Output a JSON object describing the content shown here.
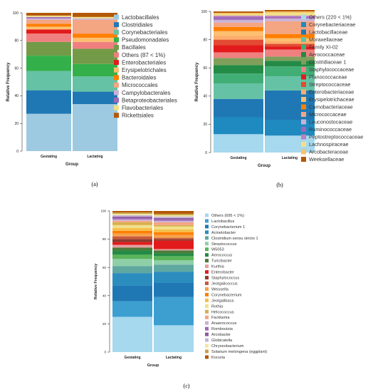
{
  "chart_data": [
    {
      "type": "bar",
      "stacked": true,
      "panel_label": "(a)",
      "xlabel": "Group",
      "ylabel": "Relative Frequency",
      "ylim": [
        0,
        100
      ],
      "yticks": [
        0,
        20,
        40,
        60,
        80,
        100
      ],
      "categories": [
        "Gestating",
        "Lactating"
      ],
      "series": [
        {
          "name": "Lactobacillales",
          "color": "#9ecae1",
          "values": [
            27.0,
            34.0
          ]
        },
        {
          "name": "Clostridiales",
          "color": "#1f78b4",
          "values": [
            17.0,
            9.0
          ]
        },
        {
          "name": "Corynebacteriales",
          "color": "#66c2a4",
          "values": [
            14.0,
            11.0
          ]
        },
        {
          "name": "Pseudomonadales",
          "color": "#33b04a",
          "values": [
            11.0,
            9.0
          ]
        },
        {
          "name": "Bacillales",
          "color": "#739b47",
          "values": [
            10.0,
            11.0
          ]
        },
        {
          "name": "Others (87 < 1%)",
          "color": "#f08080",
          "values": [
            6.0,
            5.0
          ]
        },
        {
          "name": "Enterobacteriales",
          "color": "#e31a1c",
          "values": [
            3.0,
            0.0
          ]
        },
        {
          "name": "Erysipelotrichales",
          "color": "#fdbf6f",
          "values": [
            2.0,
            3.0
          ]
        },
        {
          "name": "Bacteroidales",
          "color": "#ff7f00",
          "values": [
            2.0,
            3.0
          ]
        },
        {
          "name": "Micrococcales",
          "color": "#f4a582",
          "values": [
            3.0,
            10.0
          ]
        },
        {
          "name": "Campylobacterales",
          "color": "#cab2d6",
          "values": [
            1.0,
            1.0
          ]
        },
        {
          "name": "Betaproteobacteriales",
          "color": "#9e6ab8",
          "values": [
            1.0,
            0.0
          ]
        },
        {
          "name": "Flavobacteriales",
          "color": "#f1e08a",
          "values": [
            1.0,
            1.0
          ]
        },
        {
          "name": "Rickettsiales",
          "color": "#b35806",
          "values": [
            2.0,
            3.0
          ]
        }
      ]
    },
    {
      "type": "bar",
      "stacked": true,
      "panel_label": "(b)",
      "xlabel": "Group",
      "ylabel": "Relative Frequency",
      "ylim": [
        0,
        100
      ],
      "yticks": [
        0,
        20,
        40,
        60,
        80,
        100
      ],
      "categories": [
        "Gestating",
        "Lactating"
      ],
      "series": [
        {
          "name": "Others (220 < 1%)",
          "color": "#a6d8ee",
          "values": [
            13.0,
            12.0
          ]
        },
        {
          "name": "Corynebacteriaceae",
          "color": "#1f8ac0",
          "values": [
            12.0,
            11.0
          ]
        },
        {
          "name": "Lactobacillaceae",
          "color": "#1f78b4",
          "values": [
            13.0,
            21.0
          ]
        },
        {
          "name": "Moraxellaceae",
          "color": "#66c2a4",
          "values": [
            11.0,
            10.0
          ]
        },
        {
          "name": "Family XI-02",
          "color": "#41ae76",
          "values": [
            7.0,
            7.0
          ]
        },
        {
          "name": "Aerococcaceae",
          "color": "#238b45",
          "values": [
            6.0,
            4.0
          ]
        },
        {
          "name": "Clostridiaceae 1",
          "color": "#7f9f5a",
          "values": [
            5.0,
            3.0
          ]
        },
        {
          "name": "Staphylococcaceae",
          "color": "#f08080",
          "values": [
            4.0,
            5.0
          ]
        },
        {
          "name": "Planococcaceae",
          "color": "#e31a1c",
          "values": [
            5.0,
            2.0
          ]
        },
        {
          "name": "Streptococcaceae",
          "color": "#e34a33",
          "values": [
            4.0,
            2.0
          ]
        },
        {
          "name": "Enterobacteriaceae",
          "color": "#fdae6b",
          "values": [
            3.0,
            2.0
          ]
        },
        {
          "name": "Erysipelotrichaceae",
          "color": "#fdbf6f",
          "values": [
            3.0,
            2.0
          ]
        },
        {
          "name": "Carnobacteriaceae",
          "color": "#ff7f00",
          "values": [
            3.0,
            3.0
          ]
        },
        {
          "name": "Micrococcaceae",
          "color": "#f4a582",
          "values": [
            3.0,
            9.0
          ]
        },
        {
          "name": "Leuconostocaceae",
          "color": "#cab2d6",
          "values": [
            2.0,
            2.0
          ]
        },
        {
          "name": "Ruminococcaceae",
          "color": "#9e6ab8",
          "values": [
            2.0,
            1.0
          ]
        },
        {
          "name": "Peptostreptococcaceae",
          "color": "#bc80bd",
          "values": [
            1.0,
            1.0
          ]
        },
        {
          "name": "Lachnospiraceae",
          "color": "#f1e08a",
          "values": [
            1.0,
            2.0
          ]
        },
        {
          "name": "Arcobacteraceae",
          "color": "#f6c26b",
          "values": [
            1.0,
            1.0
          ]
        },
        {
          "name": "Weeksellaceae",
          "color": "#b35806",
          "values": [
            1.0,
            1.0
          ]
        }
      ]
    },
    {
      "type": "bar",
      "stacked": true,
      "panel_label": "(c)",
      "xlabel": "Group",
      "ylabel": "Relative Frequency",
      "ylim": [
        0,
        100
      ],
      "yticks": [
        0,
        20,
        40,
        60,
        80,
        100
      ],
      "categories": [
        "Gestating",
        "Lactating"
      ],
      "series": [
        {
          "name": "Others (695 < 1%)",
          "color": "#a6d8ee",
          "values": [
            25.0,
            19.0
          ]
        },
        {
          "name": "Lactobacillus",
          "color": "#3c9fd0",
          "values": [
            11.0,
            20.0
          ]
        },
        {
          "name": "Corynebacterium 1",
          "color": "#1f78b4",
          "values": [
            11.0,
            10.0
          ]
        },
        {
          "name": "Acinetobacter",
          "color": "#2b8cbe",
          "values": [
            9.0,
            8.0
          ]
        },
        {
          "name": "Clostridium sensu stricto 1",
          "color": "#5fa8a0",
          "values": [
            5.0,
            5.0
          ]
        },
        {
          "name": "Streptococcus",
          "color": "#8fcfa8",
          "values": [
            5.0,
            3.0
          ]
        },
        {
          "name": "W5053",
          "color": "#5ab45a",
          "values": [
            3.0,
            3.0
          ]
        },
        {
          "name": "Aerococcus",
          "color": "#238b45",
          "values": [
            3.0,
            2.0
          ]
        },
        {
          "name": "Turicibacter",
          "color": "#4d7a3a",
          "values": [
            2.0,
            2.0
          ]
        },
        {
          "name": "Kurthia",
          "color": "#e3a0a0",
          "values": [
            2.0,
            1.0
          ]
        },
        {
          "name": "Enterobacter",
          "color": "#e31a1c",
          "values": [
            2.0,
            6.0
          ]
        },
        {
          "name": "Staphylococcus",
          "color": "#8c3b2e",
          "values": [
            2.0,
            1.0
          ]
        },
        {
          "name": "Jeotgalicoccus",
          "color": "#c85a3c",
          "values": [
            2.0,
            1.0
          ]
        },
        {
          "name": "Weissella",
          "color": "#f6a24b",
          "values": [
            2.0,
            2.0
          ]
        },
        {
          "name": "Corynebacterium",
          "color": "#ff7f00",
          "values": [
            2.0,
            2.0
          ]
        },
        {
          "name": "Jeotgalibaca",
          "color": "#f5c04a",
          "values": [
            2.0,
            2.0
          ]
        },
        {
          "name": "Rothia",
          "color": "#f1e08a",
          "values": [
            2.0,
            2.0
          ]
        },
        {
          "name": "Helcococcus",
          "color": "#d8b04f",
          "values": [
            2.0,
            1.0
          ]
        },
        {
          "name": "Facklamia",
          "color": "#f4a582",
          "values": [
            1.0,
            2.0
          ]
        },
        {
          "name": "Anaerococcus",
          "color": "#cab2d6",
          "values": [
            1.0,
            1.0
          ]
        },
        {
          "name": "Romboutsia",
          "color": "#9e6ab8",
          "values": [
            1.0,
            1.0
          ]
        },
        {
          "name": "Arcobacter",
          "color": "#8e5a9e",
          "values": [
            1.0,
            1.0
          ]
        },
        {
          "name": "Globicatella",
          "color": "#c7b3d9",
          "values": [
            1.0,
            1.0
          ]
        },
        {
          "name": "Chryseobacterium",
          "color": "#f0e6a0",
          "values": [
            1.0,
            1.0
          ]
        },
        {
          "name": "Solanum melongena (eggplant)",
          "color": "#c9a24a",
          "values": [
            1.0,
            1.0
          ]
        },
        {
          "name": "Kocuria",
          "color": "#b35806",
          "values": [
            1.0,
            2.0
          ]
        }
      ]
    }
  ]
}
